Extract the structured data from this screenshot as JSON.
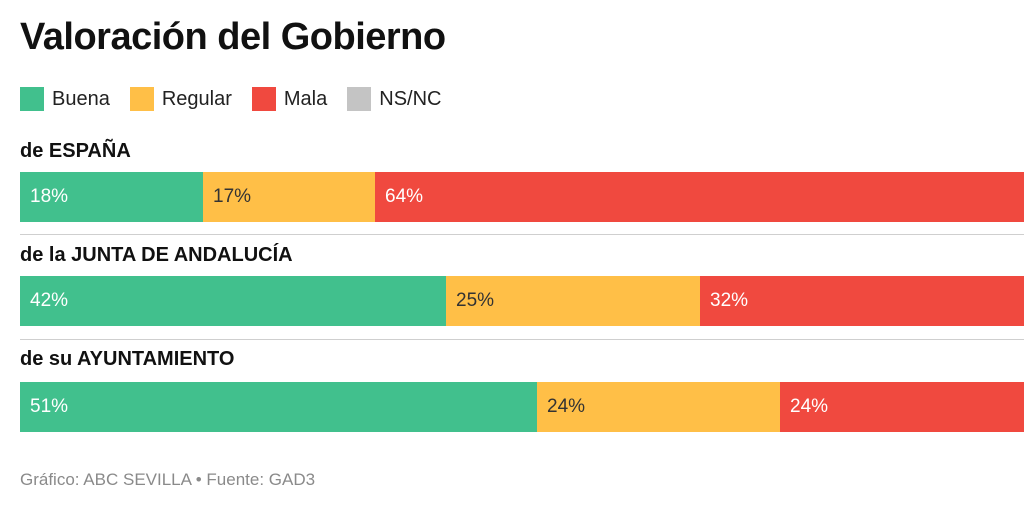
{
  "chart_data": {
    "type": "bar",
    "stacked": true,
    "orientation": "horizontal",
    "title": "Valoración del Gobierno",
    "legend_position": "top-left",
    "categories": [
      "de ESPAÑA",
      "de la JUNTA DE ANDALUCÍA",
      "de su AYUNTAMIENTO"
    ],
    "series": [
      {
        "name": "Buena",
        "color": "#41c08d",
        "label_color": "#ffffff",
        "values": [
          18,
          42,
          51
        ],
        "labels": [
          "18%",
          "42%",
          "51%"
        ]
      },
      {
        "name": "Regular",
        "color": "#ffbf47",
        "label_color": "#333333",
        "values": [
          17,
          25,
          24
        ],
        "labels": [
          "17%",
          "25%",
          "24%"
        ]
      },
      {
        "name": "Mala",
        "color": "#f0493f",
        "label_color": "#ffffff",
        "values": [
          64,
          32,
          24
        ],
        "labels": [
          "64%",
          "32%",
          "24%"
        ]
      },
      {
        "name": "NS/NC",
        "color": "#c4c4c4",
        "label_color": "#333333",
        "values": [
          null,
          null,
          null
        ],
        "labels": [
          "",
          "",
          ""
        ]
      }
    ],
    "source": "Gráfico: ABC SEVILLA • Fuente: GAD3"
  }
}
